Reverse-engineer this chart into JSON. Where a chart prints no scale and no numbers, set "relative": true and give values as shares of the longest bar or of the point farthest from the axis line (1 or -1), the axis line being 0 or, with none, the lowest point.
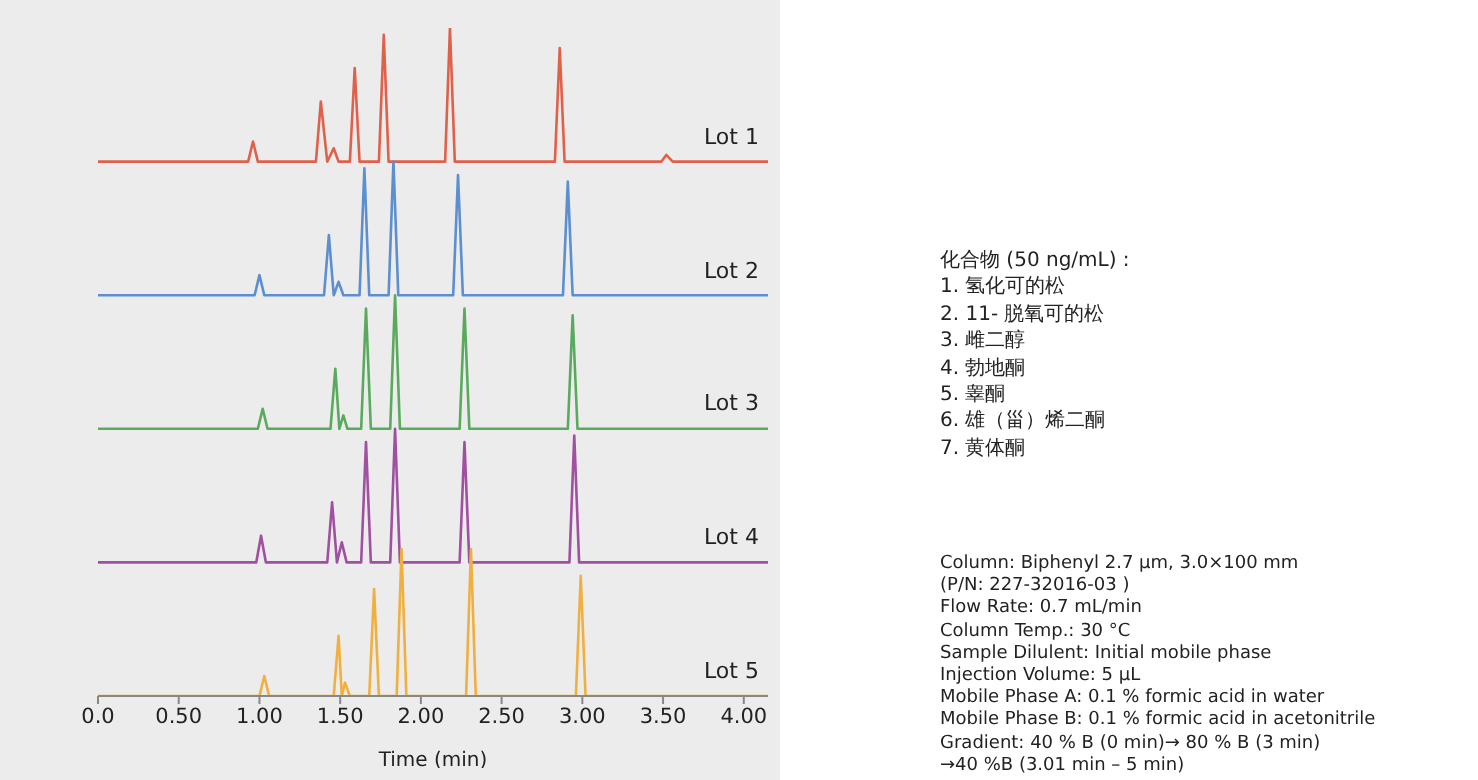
{
  "chart_data": [
    {
      "type": "line",
      "relative": true,
      "xlabel": "Time (min)",
      "xlim": [
        0,
        4.15
      ],
      "xticks": [
        {
          "value": 0,
          "label": "0.0"
        },
        {
          "value": 0.5,
          "label": "0.50"
        },
        {
          "value": 1,
          "label": "1.00"
        },
        {
          "value": 1.5,
          "label": "1.50"
        },
        {
          "value": 2,
          "label": "2.00"
        },
        {
          "value": 2.5,
          "label": "2.50"
        },
        {
          "value": 3,
          "label": "3.00"
        },
        {
          "value": 3.5,
          "label": "3.50"
        },
        {
          "value": 4,
          "label": "4.00"
        }
      ],
      "series": [
        {
          "name": "Lot 1",
          "color": "#e0604a",
          "x": [
            0,
            0.93,
            0.96,
            0.99,
            1.35,
            1.38,
            1.42,
            1.46,
            1.49,
            1.56,
            1.59,
            1.62,
            1.74,
            1.77,
            1.8,
            2.15,
            2.18,
            2.21,
            2.83,
            2.86,
            2.89,
            3.49,
            3.52,
            3.56,
            4.15
          ],
          "values": [
            0.8,
            0.8,
            0.83,
            0.8,
            0.8,
            0.89,
            0.8,
            0.82,
            0.8,
            0.8,
            0.94,
            0.8,
            0.8,
            0.99,
            0.8,
            0.8,
            1,
            0.8,
            0.8,
            0.97,
            0.8,
            0.8,
            0.81,
            0.8,
            0.8
          ]
        },
        {
          "name": "Lot 2",
          "color": "#5b8fd0",
          "x": [
            0,
            0.97,
            1,
            1.03,
            1.4,
            1.43,
            1.46,
            1.49,
            1.52,
            1.62,
            1.65,
            1.68,
            1.8,
            1.83,
            1.86,
            2.2,
            2.23,
            2.26,
            2.88,
            2.91,
            2.94,
            4.15
          ],
          "values": [
            0.6,
            0.6,
            0.63,
            0.6,
            0.6,
            0.69,
            0.6,
            0.62,
            0.6,
            0.6,
            0.79,
            0.6,
            0.6,
            0.8,
            0.6,
            0.6,
            0.78,
            0.6,
            0.6,
            0.77,
            0.6,
            0.6
          ]
        },
        {
          "name": "Lot 3",
          "color": "#5aaa5e",
          "x": [
            0,
            0.99,
            1.02,
            1.05,
            1.44,
            1.47,
            1.495,
            1.52,
            1.545,
            1.63,
            1.66,
            1.69,
            1.81,
            1.84,
            1.87,
            2.24,
            2.27,
            2.3,
            2.91,
            2.94,
            2.97,
            4.15
          ],
          "values": [
            0.4,
            0.4,
            0.43,
            0.4,
            0.4,
            0.49,
            0.4,
            0.42,
            0.4,
            0.4,
            0.58,
            0.4,
            0.4,
            0.6,
            0.4,
            0.4,
            0.58,
            0.4,
            0.4,
            0.57,
            0.4,
            0.4
          ]
        },
        {
          "name": "Lot 4",
          "color": "#a050a0",
          "x": [
            0,
            0.98,
            1.01,
            1.04,
            1.42,
            1.45,
            1.48,
            1.51,
            1.54,
            1.63,
            1.66,
            1.69,
            1.81,
            1.84,
            1.87,
            2.24,
            2.27,
            2.3,
            2.92,
            2.95,
            2.98,
            4.15
          ],
          "values": [
            0.2,
            0.2,
            0.24,
            0.2,
            0.2,
            0.29,
            0.2,
            0.23,
            0.2,
            0.2,
            0.38,
            0.2,
            0.2,
            0.4,
            0.2,
            0.2,
            0.38,
            0.2,
            0.2,
            0.39,
            0.2,
            0.2
          ]
        },
        {
          "name": "Lot 5",
          "color": "#f0b040",
          "x": [
            0,
            1,
            1.03,
            1.06,
            1.46,
            1.49,
            1.51,
            1.53,
            1.56,
            1.68,
            1.71,
            1.74,
            1.85,
            1.88,
            1.91,
            2.28,
            2.31,
            2.34,
            2.96,
            2.99,
            3.02,
            4.15
          ],
          "values": [
            0,
            0,
            0.03,
            0,
            0,
            0.09,
            0,
            0.02,
            0,
            0,
            0.16,
            0,
            0,
            0.22,
            0,
            0,
            0.22,
            0,
            0,
            0.18,
            0,
            0
          ]
        }
      ]
    },
    {
      "type": "other",
      "title": "化合物 (50 ng/mL) :",
      "annotations": [
        "1. 氢化可的松",
        "2. 11- 脱氧可的松",
        "3. 雌二醇",
        "4. 勃地酮",
        "5. 睾酮",
        "6. 雄（甾）烯二酮",
        "7. 黄体酮"
      ]
    },
    {
      "type": "other",
      "annotations": [
        "Column: Biphenyl 2.7 µm, 3.0×100 mm",
        "(P/N: 227-32016-03 )",
        "Flow Rate: 0.7 mL/min",
        "Column Temp.: 30 °C",
        "Sample Dilulent: Initial mobile phase",
        "Injection Volume: 5 µL",
        "Mobile Phase A: 0.1 % formic acid  in water",
        "Mobile Phase B: 0.1 % formic acid in acetonitrile",
        "Gradient: 40 % B (0 min)→ 80 % B (3 min)",
        "→40 %B (3.01 min – 5 min)"
      ]
    }
  ]
}
